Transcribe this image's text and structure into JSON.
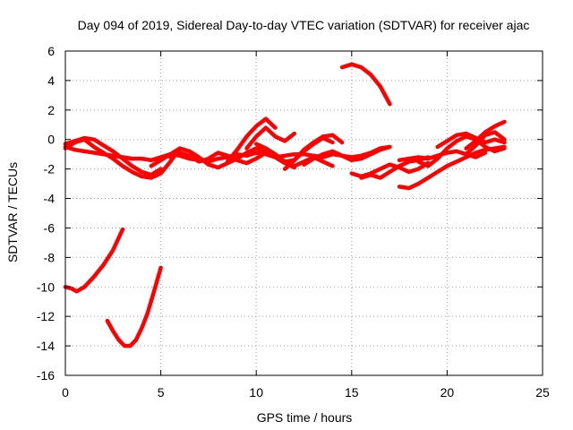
{
  "chart_data": {
    "type": "line",
    "title": "Day 094 of 2019, Sidereal Day-to-day VTEC variation (SDTVAR) for receiver ajac",
    "xlabel": "GPS time / hours",
    "ylabel": "SDTVAR / TECUs",
    "xlim": [
      0,
      25
    ],
    "ylim": [
      -16,
      6
    ],
    "xticks": [
      0,
      5,
      10,
      15,
      20,
      25
    ],
    "yticks": [
      -16,
      -14,
      -12,
      -10,
      -8,
      -6,
      -4,
      -2,
      0,
      2,
      4,
      6
    ],
    "grid": true,
    "legend": "none",
    "series_color": "#ff0000",
    "series": [
      {
        "name": "trace-1",
        "x": [
          0,
          0.5,
          1,
          1.5,
          2,
          2.5,
          3,
          3.5,
          4,
          4.5,
          5,
          5.5,
          6,
          6.5,
          7,
          7.5,
          8,
          8.5,
          9,
          9.5,
          10,
          10.5,
          11,
          11.5,
          12,
          12.5,
          13,
          13.5,
          14,
          14.5,
          15,
          15.5,
          16,
          16.5,
          17
        ],
        "y": [
          -0.5,
          -0.7,
          -0.8,
          -0.9,
          -1.0,
          -1.1,
          -1.2,
          -1.3,
          -1.3,
          -1.4,
          -1.2,
          -1.0,
          -1.1,
          -1.3,
          -1.4,
          -1.5,
          -1.3,
          -1.2,
          -1.0,
          -1.1,
          -0.9,
          -1.0,
          -1.2,
          -1.1,
          -1.0,
          -1.0,
          -1.1,
          -1.2,
          -1.0,
          -1.1,
          -1.2,
          -1.1,
          -0.9,
          -0.6,
          -0.5
        ]
      },
      {
        "name": "trace-2",
        "x": [
          0,
          0.5,
          1,
          1.5,
          2,
          2.5,
          3,
          3.5,
          4,
          4.5,
          5
        ],
        "y": [
          -0.3,
          -0.1,
          0.1,
          0.0,
          -0.4,
          -0.8,
          -1.3,
          -1.8,
          -2.2,
          -2.4,
          -2.0
        ]
      },
      {
        "name": "trace-3",
        "x": [
          0,
          0.5,
          1,
          1.5,
          2,
          2.5,
          3,
          3.5,
          4,
          4.5,
          5,
          5.5,
          6
        ],
        "y": [
          -0.6,
          -0.2,
          0.0,
          -0.5,
          -0.9,
          -1.3,
          -1.8,
          -2.2,
          -2.5,
          -2.6,
          -2.3,
          -1.5,
          -0.6
        ]
      },
      {
        "name": "trace-4",
        "x": [
          4.5,
          5,
          5.5,
          6,
          6.5,
          7,
          7.5,
          8,
          8.5,
          9,
          9.5,
          10,
          10.5,
          11,
          11.5,
          12
        ],
        "y": [
          -1.8,
          -1.4,
          -1.0,
          -0.6,
          -0.8,
          -1.2,
          -1.7,
          -1.9,
          -1.6,
          -1.3,
          -0.9,
          -0.6,
          -0.8,
          -1.2,
          -1.6,
          -1.9
        ]
      },
      {
        "name": "trace-5",
        "x": [
          5.5,
          6,
          6.5,
          7,
          7.5,
          8,
          8.5,
          9,
          9.5,
          10,
          10.5,
          11,
          11.5,
          12,
          12.5,
          13,
          13.5,
          14
        ],
        "y": [
          -1.2,
          -0.9,
          -1.1,
          -1.5,
          -1.3,
          -0.9,
          -1.1,
          -1.4,
          -1.6,
          -1.3,
          -0.9,
          -1.2,
          -1.6,
          -1.8,
          -1.5,
          -1.2,
          -1.5,
          -1.8
        ]
      },
      {
        "name": "trace-6",
        "x": [
          8.5,
          9,
          9.5,
          10,
          10.5,
          11
        ],
        "y": [
          -1.5,
          -0.7,
          0.2,
          0.9,
          1.4,
          0.8
        ]
      },
      {
        "name": "trace-7",
        "x": [
          9.5,
          10,
          10.5,
          11,
          11.5,
          12
        ],
        "y": [
          -0.6,
          0.2,
          0.8,
          0.2,
          -0.1,
          0.4
        ]
      },
      {
        "name": "trace-8",
        "x": [
          10,
          10.5,
          11,
          11.5,
          12,
          12.5,
          13,
          13.5,
          14
        ],
        "y": [
          -0.3,
          -0.6,
          -1.0,
          -1.5,
          -1.4,
          -0.8,
          -0.3,
          0.1,
          -0.2
        ]
      },
      {
        "name": "trace-9",
        "x": [
          11.5,
          12,
          12.5,
          13,
          13.5,
          14,
          14.5
        ],
        "y": [
          -2.0,
          -1.4,
          -0.7,
          -0.2,
          0.2,
          0.3,
          -0.2
        ]
      },
      {
        "name": "trace-10",
        "x": [
          12.5,
          13,
          13.5,
          14,
          14.5,
          15,
          15.5,
          16,
          16.5,
          17
        ],
        "y": [
          -1.7,
          -1.3,
          -1.0,
          -0.8,
          -1.1,
          -1.4,
          -1.3,
          -1.0,
          -0.7,
          -0.5
        ]
      },
      {
        "name": "trace-11",
        "x": [
          14.5,
          15,
          15.5,
          16,
          16.5,
          17
        ],
        "y": [
          4.9,
          5.1,
          4.9,
          4.4,
          3.6,
          2.4
        ]
      },
      {
        "name": "trace-12",
        "x": [
          15,
          15.5,
          16,
          16.5,
          17,
          17.5,
          18,
          18.5,
          19
        ],
        "y": [
          -2.3,
          -2.5,
          -2.3,
          -2.0,
          -1.7,
          -1.9,
          -2.2,
          -2.0,
          -1.6
        ]
      },
      {
        "name": "trace-13",
        "x": [
          15.5,
          16,
          16.5,
          17,
          17.5,
          18,
          18.5,
          19
        ],
        "y": [
          -2.6,
          -2.4,
          -2.6,
          -2.2,
          -1.8,
          -1.5,
          -1.4,
          -1.2
        ]
      },
      {
        "name": "trace-14",
        "x": [
          17.5,
          18,
          18.5,
          19,
          19.5,
          20,
          20.5,
          21,
          21.5,
          22,
          22.5,
          23
        ],
        "y": [
          -3.2,
          -3.3,
          -3.0,
          -2.6,
          -2.2,
          -1.8,
          -1.5,
          -1.2,
          -0.9,
          -0.7,
          -0.6,
          -0.5
        ]
      },
      {
        "name": "trace-15",
        "x": [
          17.5,
          18,
          18.5,
          19,
          19.5,
          20,
          20.5,
          21,
          21.5,
          22
        ],
        "y": [
          -1.4,
          -1.3,
          -1.2,
          -1.3,
          -1.1,
          -0.9,
          -0.8,
          -1.0,
          -1.2,
          -0.9
        ]
      },
      {
        "name": "trace-16",
        "x": [
          18.5,
          19,
          19.5,
          20,
          20.5,
          21,
          21.5,
          22,
          22.5,
          23
        ],
        "y": [
          -1.5,
          -1.8,
          -1.3,
          -0.6,
          -0.1,
          0.2,
          0.0,
          -0.5,
          -0.8,
          -0.6
        ]
      },
      {
        "name": "trace-17",
        "x": [
          19.5,
          20,
          20.5,
          21,
          21.5,
          22,
          22.5,
          23
        ],
        "y": [
          -0.5,
          -0.1,
          0.3,
          0.4,
          0.1,
          -0.2,
          0.0,
          -0.2
        ]
      },
      {
        "name": "trace-18",
        "x": [
          21,
          21.5,
          22,
          22.5,
          23
        ],
        "y": [
          -0.6,
          -0.1,
          0.5,
          0.9,
          1.2
        ]
      },
      {
        "name": "trace-19",
        "x": [
          21,
          21.5,
          22,
          22.5,
          23
        ],
        "y": [
          -1.0,
          -0.4,
          0.3,
          0.5,
          0.0
        ]
      },
      {
        "name": "trace-20",
        "x": [
          0,
          0.3,
          0.6,
          1,
          1.5,
          2,
          2.5,
          3
        ],
        "y": [
          -10.0,
          -10.1,
          -10.3,
          -10.0,
          -9.3,
          -8.5,
          -7.5,
          -6.1
        ]
      },
      {
        "name": "trace-21",
        "x": [
          2.2,
          2.5,
          2.8,
          3.1,
          3.4,
          3.7,
          4,
          4.3,
          4.6,
          5
        ],
        "y": [
          -12.3,
          -13.0,
          -13.6,
          -14.0,
          -14.0,
          -13.6,
          -12.8,
          -11.8,
          -10.5,
          -8.7
        ]
      }
    ]
  }
}
